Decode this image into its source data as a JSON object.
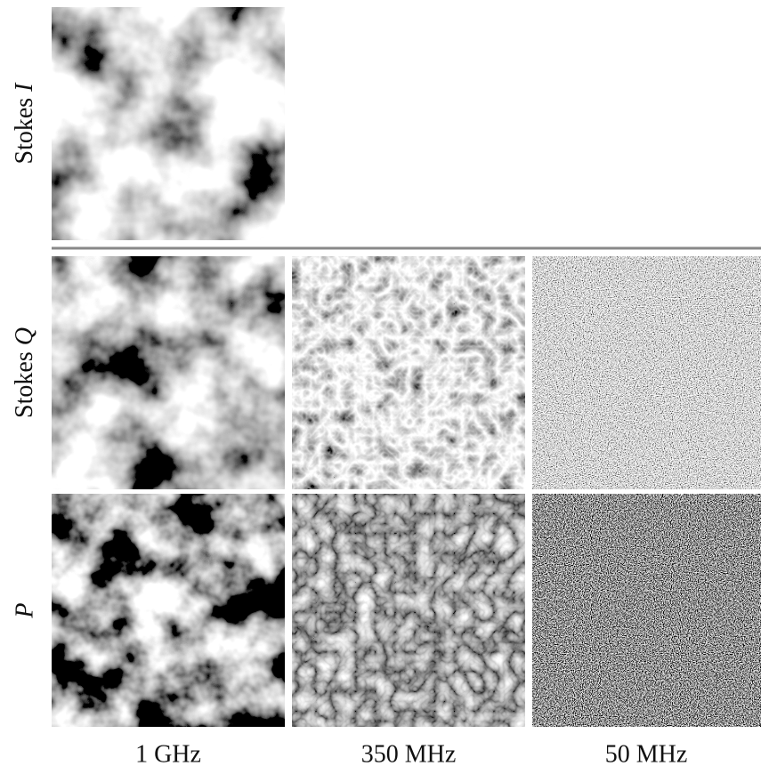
{
  "rows": [
    {
      "prefix": "Stokes",
      "symbol": "I"
    },
    {
      "prefix": "Stokes",
      "symbol": "Q"
    },
    {
      "symbol": "P"
    }
  ],
  "columns": [
    "1 GHz",
    "350 MHz",
    "50 MHz"
  ]
}
